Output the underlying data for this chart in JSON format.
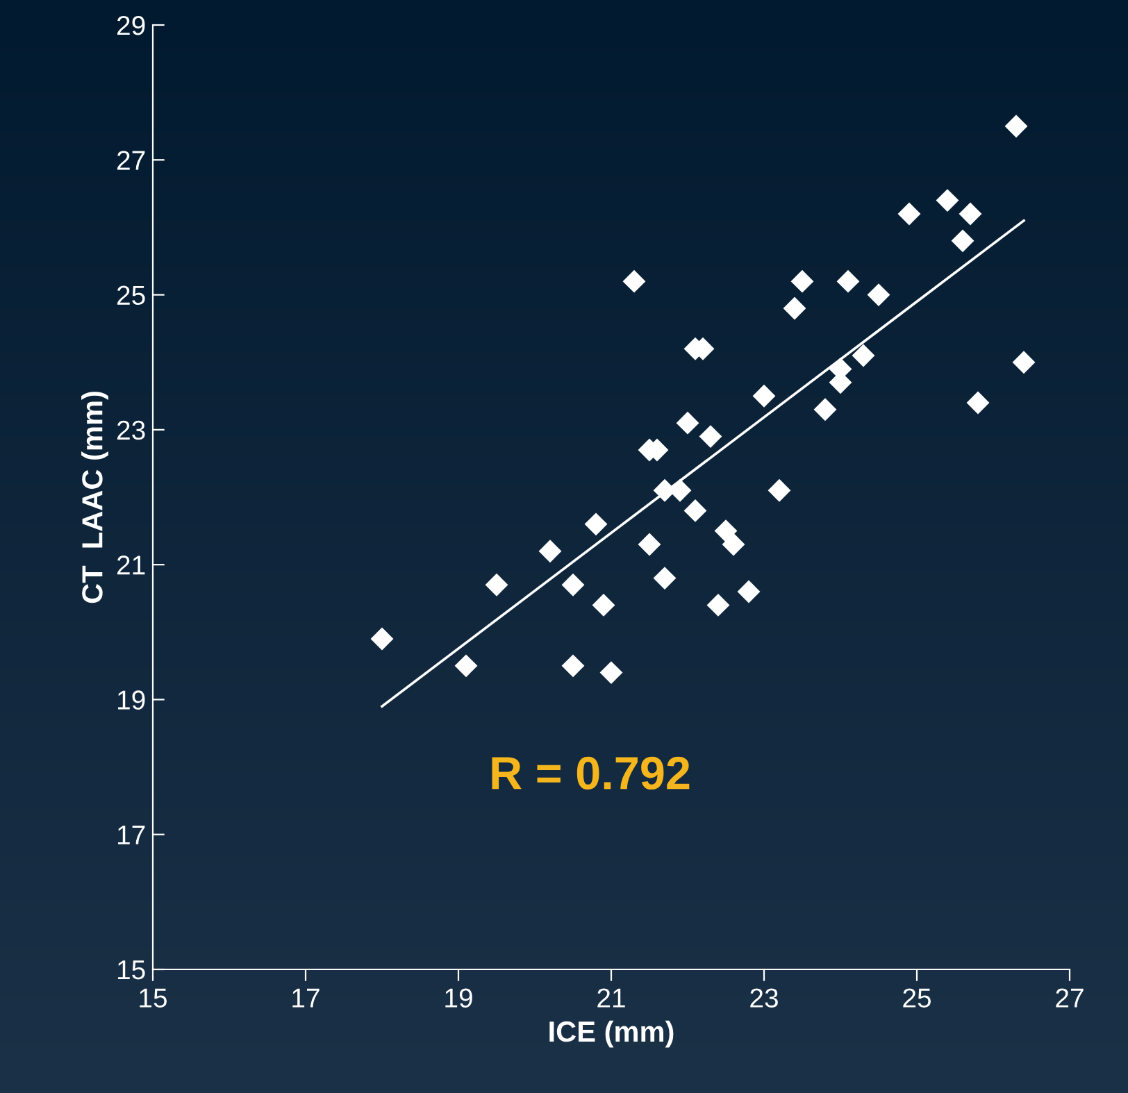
{
  "chart_data": {
    "type": "scatter",
    "xlabel": "ICE (mm)",
    "ylabel": "CT  LAAC (mm)",
    "xlim": [
      15,
      27
    ],
    "xticks": [
      15,
      17,
      19,
      21,
      23,
      25,
      27
    ],
    "ylim": [
      15,
      29
    ],
    "yticks": [
      15,
      17,
      19,
      21,
      23,
      25,
      27,
      29
    ],
    "grid": false,
    "marker": "diamond",
    "legend": false,
    "series": [
      {
        "color": "#ffffff",
        "x": [
          18,
          19.1,
          19.5,
          20.2,
          20.5,
          20.5,
          20.8,
          20.9,
          21,
          21.3,
          21.5,
          21.6,
          21.5,
          21.7,
          21.7,
          21.9,
          22,
          22.1,
          22.1,
          22.2,
          22.3,
          22.4,
          22.5,
          22.6,
          22.8,
          23,
          23.2,
          23.4,
          23.5,
          23.8,
          24,
          24,
          24.1,
          24.3,
          24.5,
          24.9,
          25.4,
          25.6,
          25.7,
          25.8,
          26.3,
          26.4
        ],
        "values": [
          19.9,
          19.5,
          20.7,
          21.2,
          20.7,
          19.5,
          21.6,
          20.4,
          19.4,
          25.2,
          22.7,
          22.7,
          21.3,
          22.1,
          20.8,
          22.1,
          23.1,
          21.8,
          24.2,
          24.2,
          22.9,
          20.4,
          21.5,
          21.3,
          20.6,
          23.5,
          22.1,
          24.8,
          25.2,
          23.3,
          23.9,
          23.7,
          25.2,
          24.1,
          25.0,
          26.2,
          26.4,
          25.8,
          26.2,
          23.4,
          27.5,
          24.0
        ]
      },
      {
        "type": "line",
        "color": "#ffffff",
        "marker": "none",
        "x": [
          18,
          26.4
        ],
        "values": [
          18.9,
          26.1
        ]
      }
    ],
    "annotations": [
      "R = 0.792"
    ]
  }
}
